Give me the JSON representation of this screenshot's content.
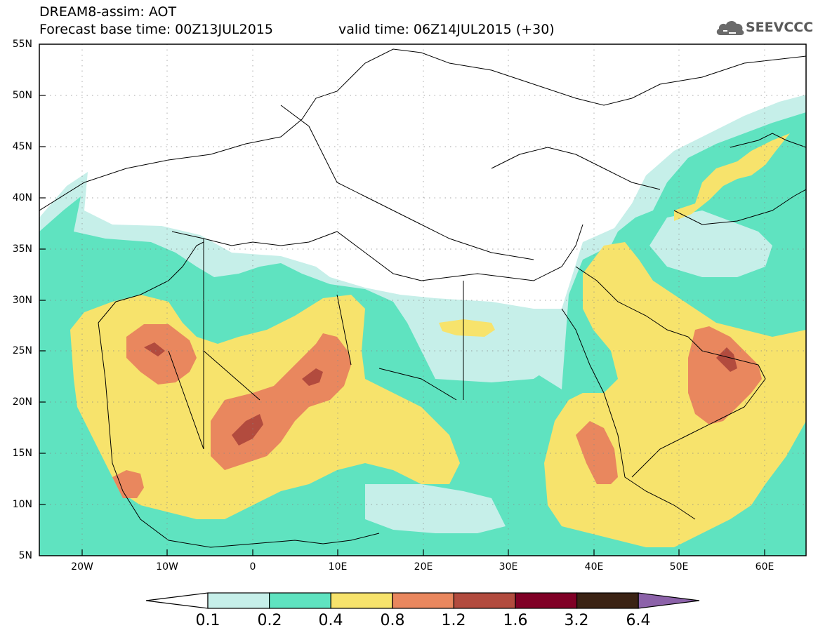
{
  "header": {
    "title_line1": "DREAM8-assim: AOT",
    "title_line2": "Forecast base time: 00Z13JUL2015",
    "valid_time": "valid time: 06Z14JUL2015 (+30)",
    "logo_text": "SEEVCCC",
    "logo_icon": "cloud-logo-icon"
  },
  "axes": {
    "lat_labels": [
      "55N",
      "50N",
      "45N",
      "40N",
      "35N",
      "30N",
      "25N",
      "20N",
      "15N",
      "10N",
      "5N"
    ],
    "lon_labels": [
      "20W",
      "10W",
      "0",
      "10E",
      "20E",
      "30E",
      "40E",
      "50E",
      "60E"
    ]
  },
  "colorbar": {
    "labels": [
      "0.1",
      "0.2",
      "0.4",
      "0.8",
      "1.2",
      "1.6",
      "3.2",
      "6.4"
    ],
    "colors": [
      "#ffffff",
      "#c6efe9",
      "#5fe3c0",
      "#f7e36c",
      "#e9875e",
      "#b24b3e",
      "#800026",
      "#3b2314",
      "#8c62a9"
    ]
  },
  "map_colors": {
    "land_border": "#000000",
    "aot_0_1": "#c6efe9",
    "aot_0_2": "#5fe3c0",
    "aot_0_4": "#f7e36c",
    "aot_0_8": "#e9875e",
    "aot_1_2": "#b24b3e"
  }
}
